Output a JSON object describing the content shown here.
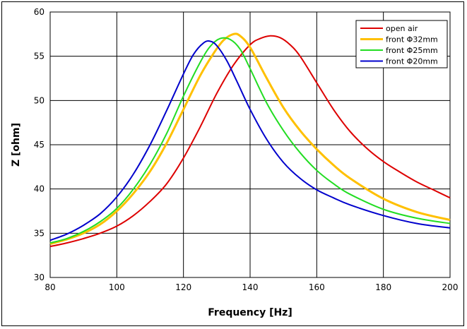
{
  "chart_data": {
    "type": "line",
    "title": "",
    "xlabel": "Frequency [Hz]",
    "ylabel": "Z [ohm]",
    "xlim": [
      80,
      200
    ],
    "ylim": [
      30,
      60
    ],
    "xticks": [
      80,
      100,
      120,
      140,
      160,
      180,
      200
    ],
    "yticks": [
      30,
      35,
      40,
      45,
      50,
      55,
      60
    ],
    "grid": true,
    "legend_position": "top-right",
    "series": [
      {
        "name": "open air",
        "color": "#dd0000",
        "x": [
          80,
          85,
          90,
          95,
          100,
          105,
          110,
          115,
          120,
          125,
          130,
          135,
          140,
          143,
          146,
          149,
          152,
          155,
          160,
          165,
          170,
          175,
          180,
          185,
          190,
          195,
          200
        ],
        "y": [
          33.5,
          33.9,
          34.4,
          35.0,
          35.8,
          37.0,
          38.6,
          40.6,
          43.5,
          47.0,
          50.8,
          54.0,
          56.3,
          57.0,
          57.3,
          57.1,
          56.3,
          55.0,
          52.0,
          49.0,
          46.5,
          44.6,
          43.1,
          41.9,
          40.8,
          39.9,
          39.0
        ]
      },
      {
        "name": "front Φ32mm",
        "color": "#ffc000",
        "x": [
          80,
          85,
          90,
          95,
          100,
          105,
          110,
          115,
          120,
          125,
          129,
          132,
          135,
          137,
          140,
          145,
          150,
          155,
          160,
          165,
          170,
          180,
          190,
          200
        ],
        "y": [
          33.8,
          34.3,
          35.0,
          36.0,
          37.5,
          39.5,
          42.0,
          45.2,
          49.0,
          52.8,
          55.3,
          56.8,
          57.5,
          57.3,
          56.0,
          52.5,
          49.2,
          46.6,
          44.5,
          42.7,
          41.2,
          38.9,
          37.4,
          36.5
        ]
      },
      {
        "name": "front Φ25mm",
        "color": "#22dd22",
        "x": [
          80,
          85,
          90,
          95,
          100,
          105,
          110,
          115,
          120,
          125,
          128,
          131,
          134,
          137,
          140,
          145,
          150,
          155,
          160,
          165,
          170,
          180,
          190,
          200
        ],
        "y": [
          33.9,
          34.4,
          35.2,
          36.3,
          37.8,
          40.0,
          42.8,
          46.3,
          50.5,
          54.3,
          56.1,
          57.0,
          56.9,
          55.8,
          53.6,
          49.7,
          46.6,
          44.1,
          42.1,
          40.6,
          39.4,
          37.7,
          36.7,
          36.1
        ]
      },
      {
        "name": "front Φ20mm",
        "color": "#0000cc",
        "x": [
          80,
          85,
          90,
          95,
          100,
          105,
          110,
          115,
          120,
          123,
          126,
          128,
          130,
          133,
          136,
          140,
          145,
          150,
          155,
          160,
          165,
          170,
          180,
          190,
          200
        ],
        "y": [
          34.2,
          34.9,
          35.9,
          37.2,
          39.1,
          41.7,
          45.0,
          48.9,
          53.0,
          55.2,
          56.5,
          56.7,
          56.2,
          54.5,
          52.2,
          49.0,
          45.6,
          43.0,
          41.2,
          39.9,
          39.0,
          38.2,
          37.0,
          36.1,
          35.6
        ]
      }
    ]
  }
}
